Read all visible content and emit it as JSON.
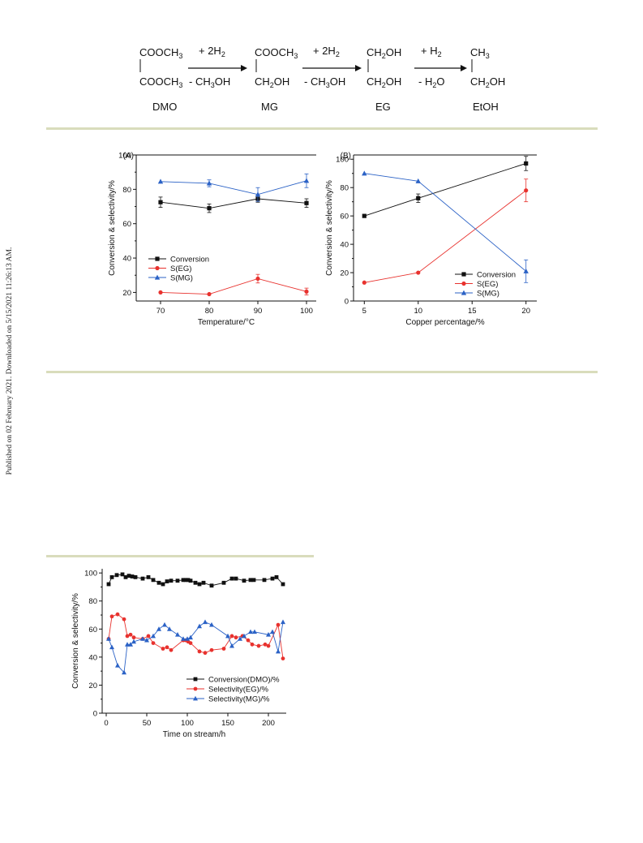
{
  "margin_note": "Published on 02 February 2021. Downloaded on 5/15/2021 11:26:13 AM.",
  "scheme": {
    "reagents": [
      {
        "top": "+ 2H",
        "top_sub": "2",
        "bottom": "- CH",
        "bottom_sub": "3",
        "bottom_tail": "OH"
      },
      {
        "top": "+ 2H",
        "top_sub": "2",
        "bottom": "- CH",
        "bottom_sub": "3",
        "bottom_tail": "OH"
      },
      {
        "top": "+ H",
        "top_sub": "2",
        "bottom": "- H",
        "bottom_sub": "2",
        "bottom_tail": "O"
      }
    ],
    "compounds": [
      {
        "label": "DMO",
        "top": "COOCH",
        "top_sub": "3",
        "bottom": "COOCH",
        "bottom_sub": "3"
      },
      {
        "label": "MG",
        "top": "COOCH",
        "top_sub": "3",
        "bottom": "CH",
        "bottom_sub": "2",
        "bottom_tail": "OH"
      },
      {
        "label": "EG",
        "top": "CH",
        "top_sub": "2",
        "top_tail": "OH",
        "bottom": "CH",
        "bottom_sub": "2",
        "bottom_tail": "OH"
      },
      {
        "label": "EtOH",
        "top": "CH",
        "top_sub": "3",
        "bottom": "CH",
        "bottom_sub": "2",
        "bottom_tail": "OH"
      }
    ]
  },
  "colors": {
    "black": "#111111",
    "red": "#e8322e",
    "blue": "#2b62c6",
    "rule": "#d9dcbc"
  },
  "chart_data": [
    {
      "type": "line",
      "panel_label": "(A)",
      "xlabel": "Temperature/°C",
      "ylabel": "Conversion & selectivity/%",
      "x": [
        70,
        80,
        90,
        100
      ],
      "xticks": [
        70,
        80,
        90,
        100
      ],
      "yticks": [
        20,
        40,
        60,
        80,
        100
      ],
      "xlim": [
        65,
        102
      ],
      "ylim": [
        15,
        100
      ],
      "legend": "center-left",
      "series": [
        {
          "name": "Conversion",
          "marker": "square",
          "color": "#111111",
          "values": [
            72.5,
            69,
            74.5,
            72
          ],
          "errors": [
            3,
            2.5,
            2,
            2.5
          ]
        },
        {
          "name": "S(EG)",
          "marker": "circle",
          "color": "#e8322e",
          "values": [
            20,
            19,
            28,
            20.5
          ],
          "errors": [
            0,
            0,
            2.5,
            2
          ]
        },
        {
          "name": "S(MG)",
          "marker": "triangle",
          "color": "#2b62c6",
          "values": [
            84.5,
            83.5,
            77,
            85
          ],
          "errors": [
            0,
            2,
            4,
            4
          ]
        }
      ]
    },
    {
      "type": "line",
      "panel_label": "(B)",
      "xlabel": "Copper percentage/%",
      "ylabel": "Conversion & selectivity/%",
      "x": [
        5,
        10,
        20
      ],
      "xticks": [
        5,
        10,
        15,
        20
      ],
      "yticks": [
        0,
        20,
        40,
        60,
        80,
        100
      ],
      "xlim": [
        4,
        21
      ],
      "ylim": [
        0,
        103
      ],
      "legend": "bottom-right",
      "series": [
        {
          "name": "Conversion",
          "marker": "square",
          "color": "#111111",
          "values": [
            60,
            72.5,
            97
          ],
          "errors": [
            0,
            3,
            5
          ]
        },
        {
          "name": "S(EG)",
          "marker": "circle",
          "color": "#e8322e",
          "values": [
            13,
            20,
            78
          ],
          "errors": [
            0,
            0,
            8
          ]
        },
        {
          "name": "S(MG)",
          "marker": "triangle",
          "color": "#2b62c6",
          "values": [
            90,
            84.5,
            21
          ],
          "errors": [
            0,
            0,
            8
          ]
        }
      ]
    },
    {
      "type": "line",
      "xlabel": "Time on stream/h",
      "ylabel": "Conversion & selectivity/%",
      "xticks": [
        0,
        50,
        100,
        150,
        200
      ],
      "yticks": [
        0,
        20,
        40,
        60,
        80,
        100
      ],
      "xlim": [
        -5,
        222
      ],
      "ylim": [
        0,
        103
      ],
      "legend": "bottom-right",
      "series": [
        {
          "name": "Conversion(DMO)/%",
          "marker": "square",
          "color": "#111111",
          "x": [
            3,
            7,
            13,
            20,
            24,
            28,
            32,
            36,
            45,
            52,
            58,
            65,
            70,
            75,
            80,
            88,
            95,
            98,
            101,
            104,
            110,
            115,
            120,
            130,
            145,
            155,
            160,
            170,
            178,
            182,
            195,
            205,
            210,
            218
          ],
          "y": [
            92,
            97,
            98.5,
            99,
            97,
            98,
            97.5,
            97,
            96,
            97,
            95,
            93,
            92,
            94,
            94.5,
            94.5,
            95,
            95,
            95,
            94.5,
            93,
            92,
            93,
            91,
            93,
            96,
            96,
            94.5,
            95,
            95,
            95,
            96,
            97,
            92
          ]
        },
        {
          "name": "Selectivity(EG)/%",
          "marker": "circle",
          "color": "#e8322e",
          "x": [
            3,
            7,
            14,
            22,
            26,
            30,
            34,
            45,
            52,
            58,
            70,
            75,
            80,
            95,
            98,
            101,
            104,
            115,
            122,
            130,
            145,
            155,
            160,
            168,
            175,
            180,
            188,
            196,
            200,
            212,
            218
          ],
          "y": [
            53,
            69,
            70.5,
            67,
            55,
            56,
            54,
            53,
            55,
            50,
            46,
            47,
            45,
            52,
            52,
            51,
            50,
            44,
            43,
            45,
            46,
            55,
            54,
            55,
            52,
            49,
            48,
            49,
            48,
            63,
            39
          ]
        },
        {
          "name": "Selectivity(MG)/%",
          "marker": "triangle",
          "color": "#2b62c6",
          "x": [
            3,
            7,
            14,
            22,
            26,
            30,
            34,
            45,
            50,
            58,
            65,
            72,
            78,
            88,
            95,
            100,
            104,
            115,
            122,
            130,
            150,
            155,
            165,
            170,
            178,
            183,
            200,
            205,
            212,
            218
          ],
          "y": [
            53,
            47,
            34,
            29,
            49,
            49,
            51,
            53,
            52,
            55,
            60,
            63,
            60,
            56,
            53,
            53,
            54,
            62,
            65,
            63,
            55,
            48,
            53,
            55,
            58,
            58,
            56,
            58,
            44,
            65
          ]
        }
      ]
    }
  ]
}
